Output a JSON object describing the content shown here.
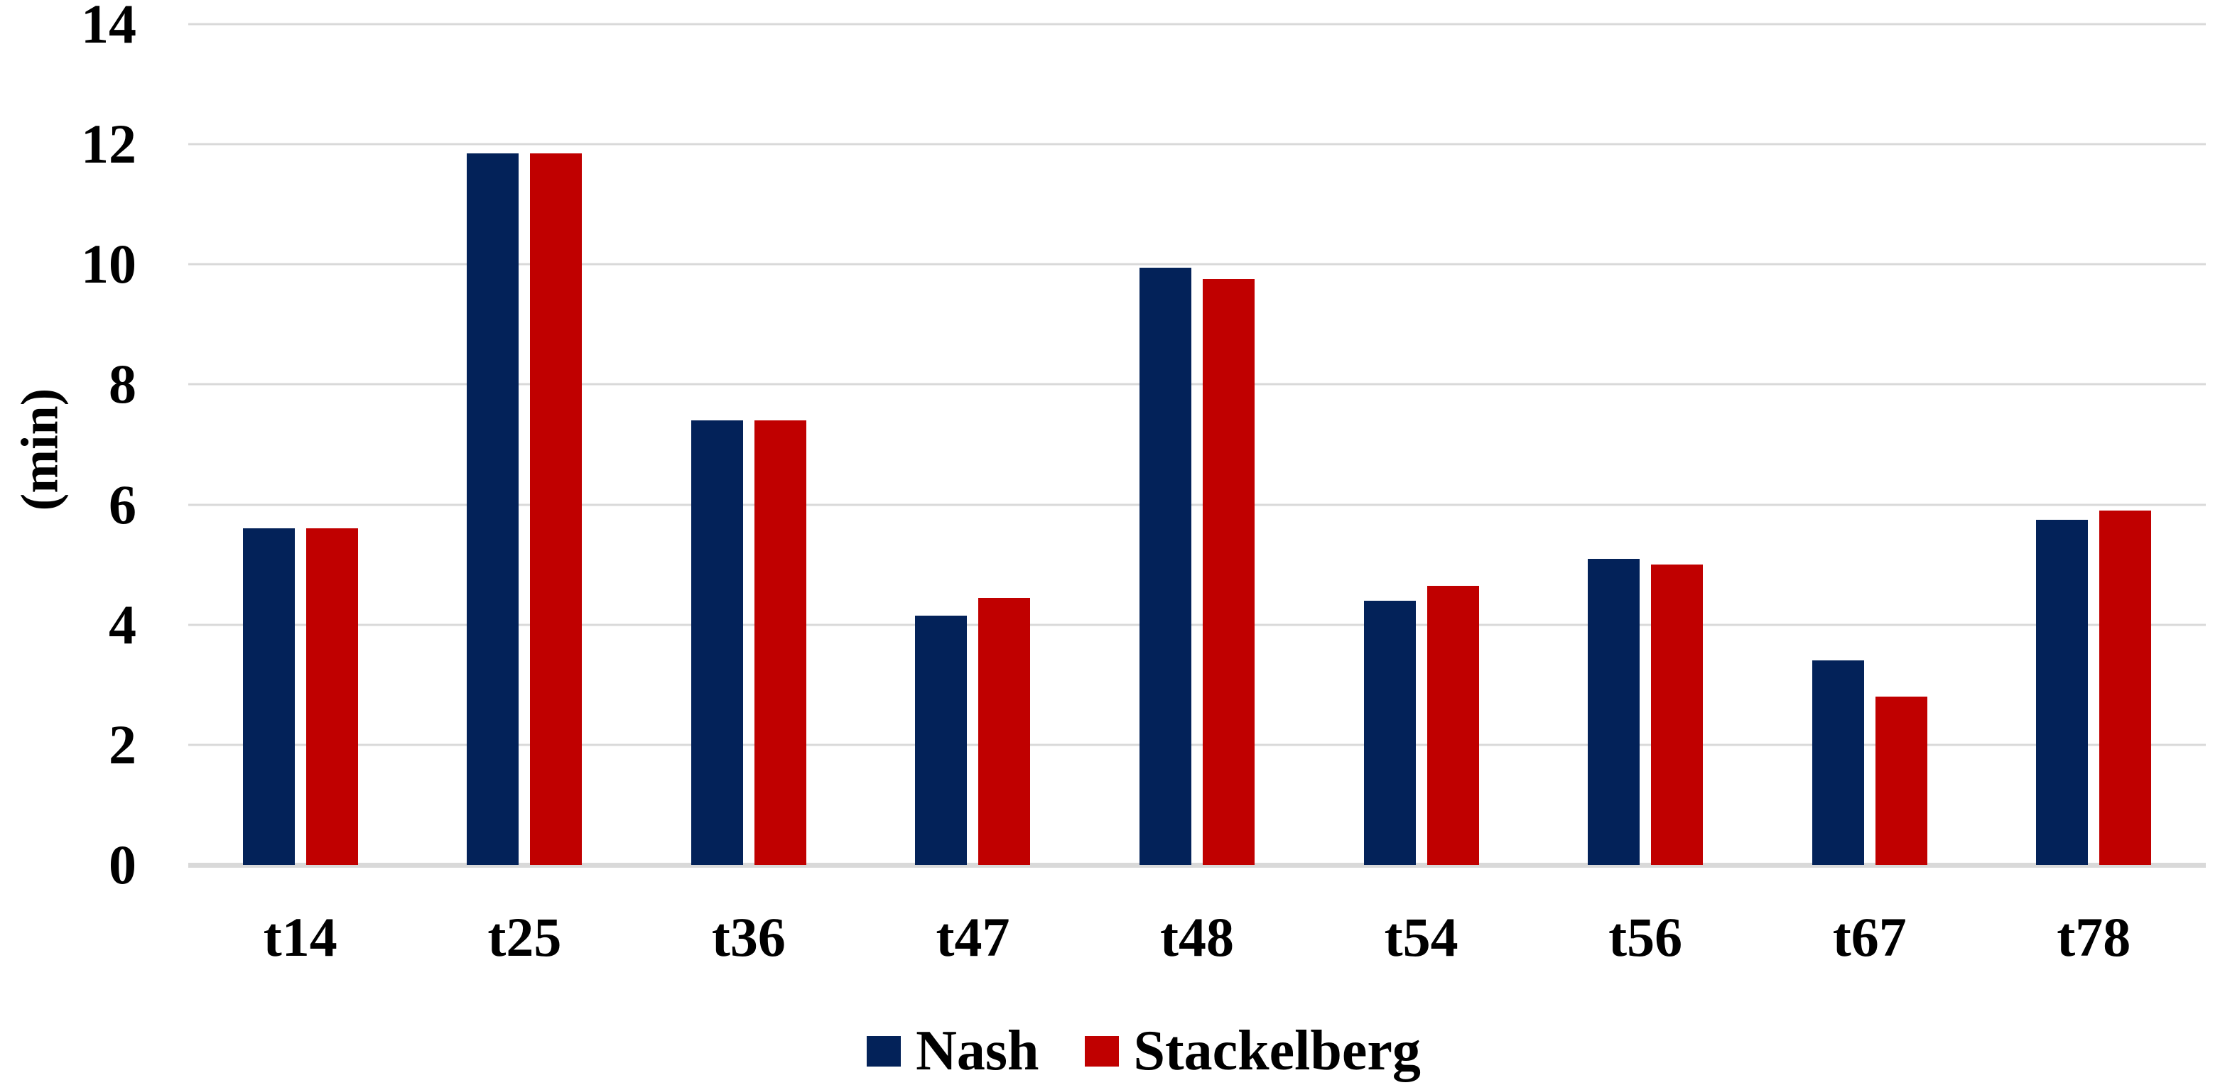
{
  "chart_data": {
    "type": "bar",
    "title": "",
    "ylabel": "(min)",
    "xlabel": "",
    "categories": [
      "t14",
      "t25",
      "t36",
      "t47",
      "t48",
      "t54",
      "t56",
      "t67",
      "t78"
    ],
    "series": [
      {
        "name": "Nash",
        "color": "#032259",
        "values": [
          5.6,
          11.85,
          7.4,
          4.15,
          9.95,
          4.4,
          5.1,
          3.4,
          5.75
        ]
      },
      {
        "name": "Stackelberg",
        "color": "#c00000",
        "values": [
          5.6,
          11.85,
          7.4,
          4.45,
          9.75,
          4.65,
          5.0,
          2.8,
          5.9
        ]
      }
    ],
    "ylim": [
      0,
      14
    ],
    "yticks": [
      0,
      2,
      4,
      6,
      8,
      10,
      12,
      14
    ],
    "grid": true,
    "gridline_color": "#d9d9d9",
    "axis_line_color": "#d9d9d9",
    "legend_position": "bottom"
  }
}
